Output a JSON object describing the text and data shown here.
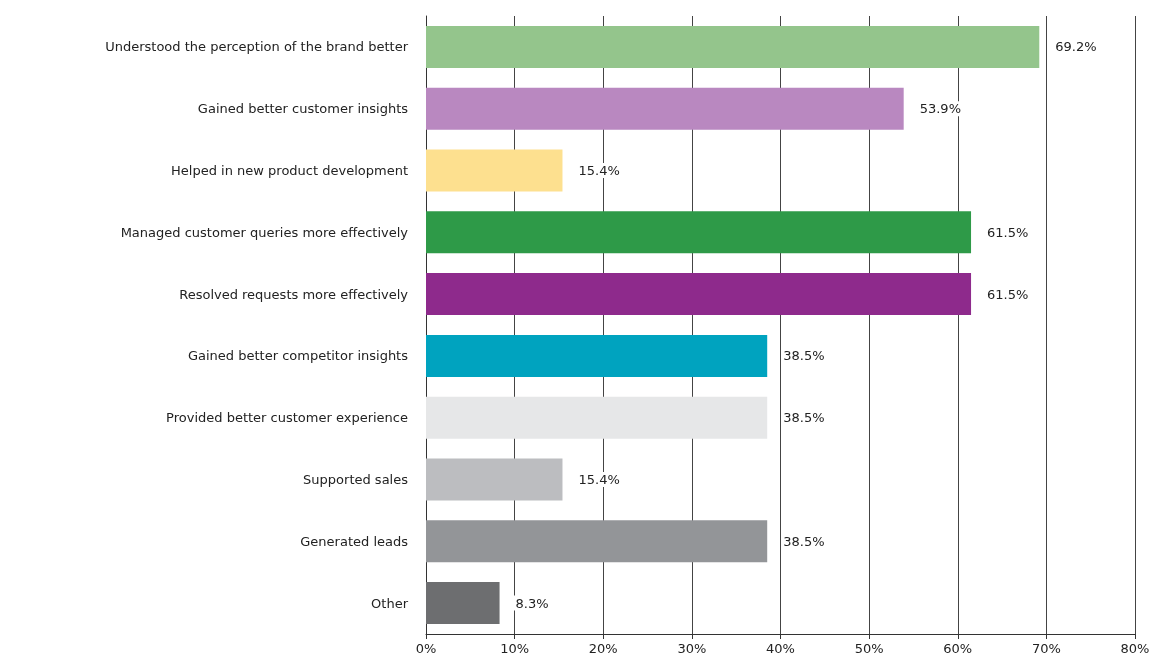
{
  "chart_data": {
    "type": "bar",
    "orientation": "horizontal",
    "categories": [
      "Understood the perception of the brand better",
      "Gained better customer insights",
      "Helped in new product development",
      "Managed customer queries more effectively",
      "Resolved requests more effectively",
      "Gained better competitor insights",
      "Provided better customer experience",
      "Supported sales",
      "Generated leads",
      "Other"
    ],
    "values": [
      69.2,
      53.9,
      15.4,
      61.5,
      61.5,
      38.5,
      38.5,
      15.4,
      38.5,
      8.3
    ],
    "value_labels": [
      "69.2%",
      "53.9%",
      "15.4%",
      "61.5%",
      "61.5%",
      "38.5%",
      "38.5%",
      "15.4%",
      "38.5%",
      "8.3%"
    ],
    "colors": [
      "#94c58c",
      "#b988c0",
      "#fde08f",
      "#2e9a48",
      "#8e2a8c",
      "#00a3bf",
      "#e6e7e8",
      "#bcbdc0",
      "#939598",
      "#6d6e70"
    ],
    "xlim": [
      0,
      80
    ],
    "xticks": [
      {
        "value": 0,
        "label": "0%"
      },
      {
        "value": 10,
        "label": "10%"
      },
      {
        "value": 20,
        "label": "20%"
      },
      {
        "value": 30,
        "label": "30%"
      },
      {
        "value": 40,
        "label": "40%"
      },
      {
        "value": 50,
        "label": "50%"
      },
      {
        "value": 60,
        "label": "60%"
      },
      {
        "value": 70,
        "label": "70%"
      },
      {
        "value": 80,
        "label": "80%"
      }
    ],
    "grid": "x"
  }
}
